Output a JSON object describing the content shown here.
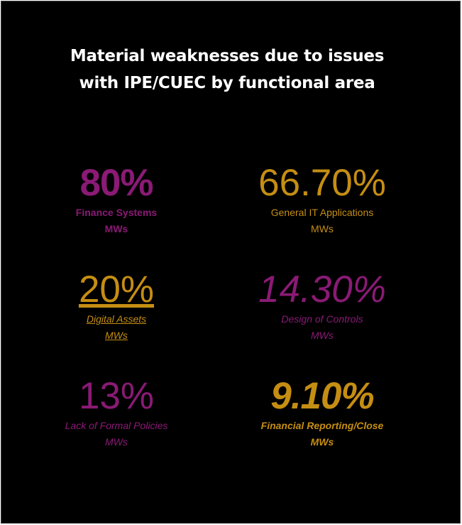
{
  "title_line1": "Material weaknesses due to issues",
  "title_line2": "with IPE/CUEC by functional area",
  "colors": {
    "background": "#000000",
    "title": "#ffffff",
    "purple": "#8a1a75",
    "gold": "#c58e13"
  },
  "stats": [
    {
      "value": "80%",
      "label_line1": "Finance Systems",
      "label_line2": "MWs"
    },
    {
      "value": "66.70%",
      "label_line1": "General IT Applications",
      "label_line2": "MWs"
    },
    {
      "value": "20%",
      "label_line1": "Digital Assets",
      "label_line2": "MWs"
    },
    {
      "value": "14.30%",
      "label_line1": "Design of Controls",
      "label_line2": "MWs"
    },
    {
      "value": "13%",
      "label_line1": "Lack of Formal Policies",
      "label_line2": "MWs"
    },
    {
      "value": "9.10%",
      "label_line1": "Financial Reporting/Close",
      "label_line2": "MWs"
    }
  ]
}
